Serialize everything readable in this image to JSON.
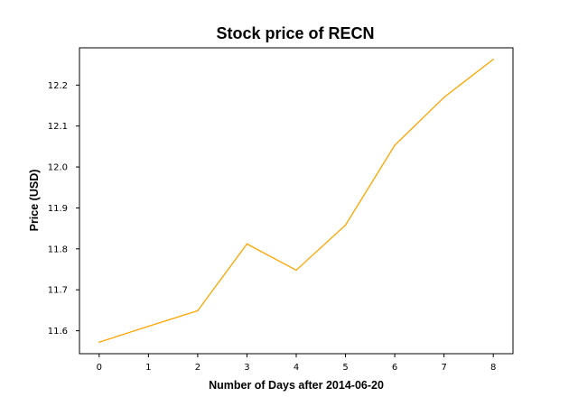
{
  "chart_data": {
    "type": "line",
    "title": "Stock price of RECN",
    "xlabel": "Number of Days after 2014-06-20",
    "ylabel": "Price (USD)",
    "x": [
      0,
      1,
      2,
      3,
      4,
      5,
      6,
      7,
      8
    ],
    "series": [
      {
        "name": "RECN",
        "color": "#ffa500",
        "values": [
          11.572,
          11.611,
          11.649,
          11.812,
          11.748,
          11.858,
          12.053,
          12.17,
          12.263
        ]
      }
    ],
    "xlim": [
      -0.4,
      8.4
    ],
    "ylim": [
      11.544,
      12.291
    ],
    "xticks": [
      0,
      1,
      2,
      3,
      4,
      5,
      6,
      7,
      8
    ],
    "xtick_labels": [
      "0",
      "1",
      "2",
      "3",
      "4",
      "5",
      "6",
      "7",
      "8"
    ],
    "yticks": [
      11.6,
      11.7,
      11.8,
      11.9,
      12.0,
      12.1,
      12.2
    ],
    "ytick_labels": [
      "11.6",
      "11.7",
      "11.8",
      "11.9",
      "12.0",
      "12.1",
      "12.2"
    ],
    "grid": false,
    "legend": "none"
  }
}
